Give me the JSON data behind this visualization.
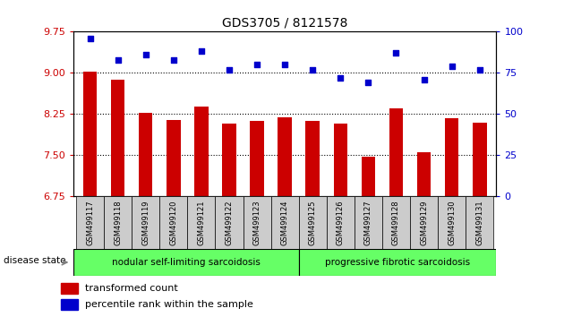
{
  "title": "GDS3705 / 8121578",
  "samples": [
    "GSM499117",
    "GSM499118",
    "GSM499119",
    "GSM499120",
    "GSM499121",
    "GSM499122",
    "GSM499123",
    "GSM499124",
    "GSM499125",
    "GSM499126",
    "GSM499127",
    "GSM499128",
    "GSM499129",
    "GSM499130",
    "GSM499131"
  ],
  "bar_values": [
    9.02,
    8.87,
    8.28,
    8.15,
    8.38,
    8.08,
    8.12,
    8.19,
    8.13,
    8.08,
    7.47,
    8.35,
    7.55,
    8.18,
    8.1
  ],
  "dot_values": [
    96,
    83,
    86,
    83,
    88,
    77,
    80,
    80,
    77,
    72,
    69,
    87,
    71,
    79,
    77
  ],
  "ylim_left": [
    6.75,
    9.75
  ],
  "ylim_right": [
    0,
    100
  ],
  "yticks_left": [
    6.75,
    7.5,
    8.25,
    9.0,
    9.75
  ],
  "yticks_right": [
    0,
    25,
    50,
    75,
    100
  ],
  "bar_color": "#cc0000",
  "dot_color": "#0000cc",
  "group1_label": "nodular self-limiting sarcoidosis",
  "group2_label": "progressive fibrotic sarcoidosis",
  "group1_count": 8,
  "group2_count": 7,
  "disease_state_label": "disease state",
  "legend_bar": "transformed count",
  "legend_dot": "percentile rank within the sample",
  "group_bg_color": "#66ff66",
  "sample_bg_color": "#cccccc",
  "hline_values": [
    7.5,
    8.25,
    9.0
  ]
}
